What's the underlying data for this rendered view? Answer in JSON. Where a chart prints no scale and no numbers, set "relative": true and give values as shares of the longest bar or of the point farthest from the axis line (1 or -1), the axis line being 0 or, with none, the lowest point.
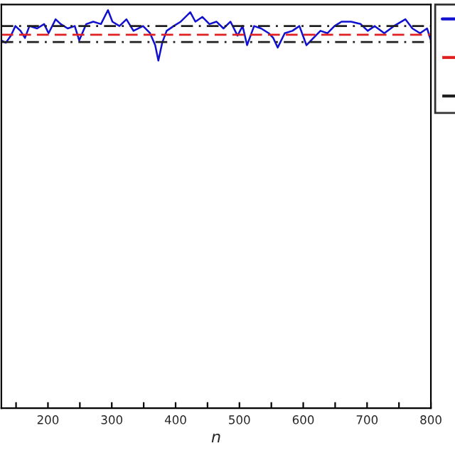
{
  "chart_data": {
    "type": "line",
    "relative": true,
    "xlabel": "n",
    "xlim": [
      127,
      800
    ],
    "xticks": [
      {
        "value": 150,
        "label": null
      },
      200,
      {
        "value": 250,
        "label": null
      },
      300,
      {
        "value": 350,
        "label": null
      },
      400,
      {
        "value": 450,
        "label": null
      },
      500,
      {
        "value": 550,
        "label": null
      },
      600,
      {
        "value": 650,
        "label": null
      },
      700,
      {
        "value": 750,
        "label": null
      },
      800
    ],
    "tick_labels": "x",
    "grid": false,
    "series": [
      {
        "color": "#1010d0",
        "line_style": "solid",
        "x": [
          127,
          134,
          142,
          149,
          157,
          164,
          171,
          183,
          194,
          201,
          212,
          220,
          231,
          242,
          249,
          260,
          271,
          283,
          294,
          301,
          312,
          323,
          334,
          349,
          360,
          368,
          373,
          379,
          386,
          397,
          408,
          423,
          431,
          442,
          453,
          464,
          475,
          486,
          497,
          505,
          512,
          523,
          534,
          546,
          553,
          560,
          571,
          583,
          594,
          605,
          616,
          627,
          638,
          649,
          660,
          675,
          690,
          701,
          712,
          727,
          742,
          760,
          771,
          783,
          794,
          800
        ],
        "values": [
          0.924,
          0.918,
          0.936,
          0.96,
          0.948,
          0.93,
          0.96,
          0.954,
          0.965,
          0.942,
          0.977,
          0.965,
          0.954,
          0.96,
          0.924,
          0.965,
          0.971,
          0.965,
          1.0,
          0.971,
          0.96,
          0.977,
          0.948,
          0.96,
          0.942,
          0.912,
          0.873,
          0.918,
          0.948,
          0.96,
          0.971,
          0.995,
          0.971,
          0.983,
          0.965,
          0.971,
          0.954,
          0.971,
          0.936,
          0.96,
          0.912,
          0.96,
          0.954,
          0.942,
          0.93,
          0.906,
          0.942,
          0.948,
          0.96,
          0.912,
          0.93,
          0.948,
          0.942,
          0.96,
          0.971,
          0.971,
          0.965,
          0.948,
          0.96,
          0.942,
          0.96,
          0.977,
          0.954,
          0.942,
          0.954,
          0.924
        ]
      }
    ],
    "ref_lines": [
      {
        "axis": "y",
        "value": 0.938,
        "color": "#e02020",
        "line_style": "dashed"
      },
      {
        "axis": "y",
        "value": 0.92,
        "color": "#202020",
        "line_style": "dashdot"
      },
      {
        "axis": "y",
        "value": 0.96,
        "color": "#202020",
        "line_style": "dashdot"
      }
    ]
  }
}
